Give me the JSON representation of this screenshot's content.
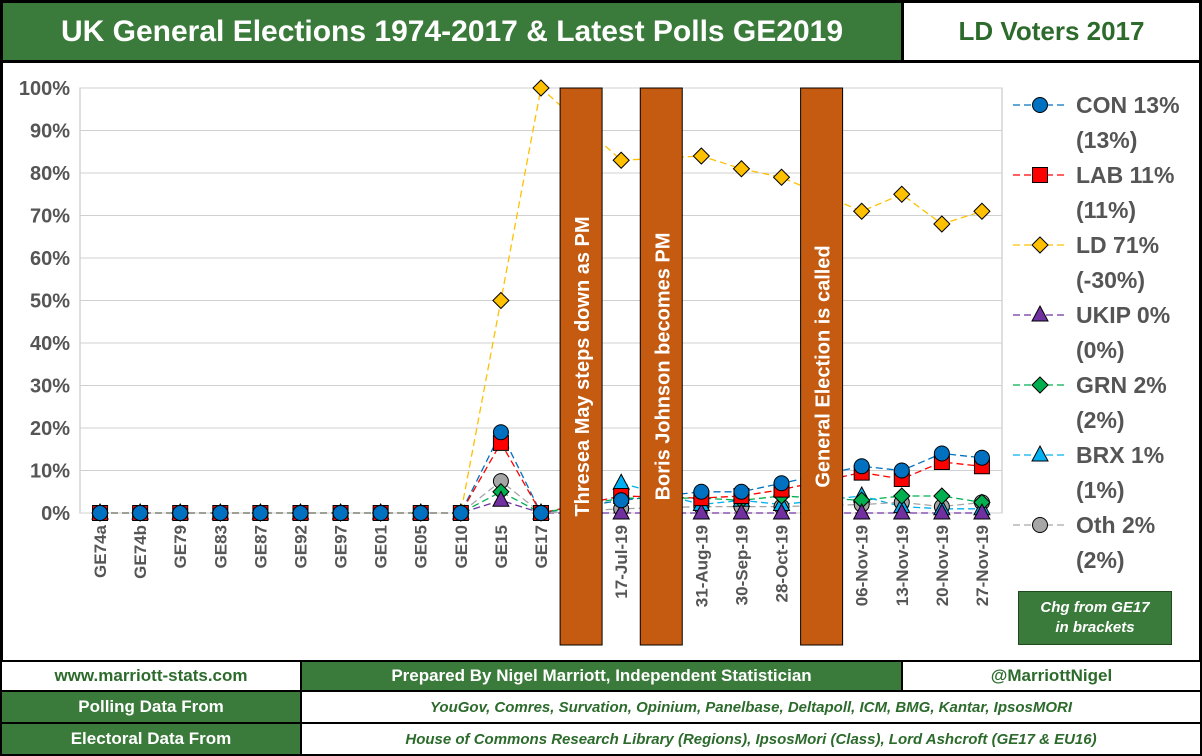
{
  "header": {
    "title": "UK General Elections 1974-2017 & Latest Polls GE2019",
    "subtitle": "LD Voters 2017"
  },
  "footer": {
    "website": "www.marriott-stats.com",
    "prepared_by": "Prepared By Nigel Marriott, Independent Statistician",
    "twitter": "@MarriottNigel",
    "polling_label": "Polling Data From",
    "polling_sources": "YouGov, Comres, Survation, Opinium, Panelbase, Deltapoll, ICM, BMG, Kantar, IpsosMORI",
    "electoral_label": "Electoral Data From",
    "electoral_sources": "House of Commons Research Library (Regions), IpsosMori (Class), Lord Ashcroft (GE17 & EU16)"
  },
  "chg_note": {
    "line1": "Chg from GE17",
    "line2": "in brackets"
  },
  "chart_data": {
    "type": "line",
    "ylim": [
      0,
      100
    ],
    "yticks": [
      "0%",
      "10%",
      "20%",
      "30%",
      "40%",
      "50%",
      "60%",
      "70%",
      "80%",
      "90%",
      "100%"
    ],
    "categories": [
      "GE74a",
      "GE74b",
      "GE79",
      "GE83",
      "GE87",
      "GE92",
      "GE97",
      "GE01",
      "GE05",
      "GE10",
      "GE15",
      "GE17",
      "",
      "17-Jul-19",
      "",
      "31-Aug-19",
      "30-Sep-19",
      "28-Oct-19",
      "",
      "06-Nov-19",
      "13-Nov-19",
      "20-Nov-19",
      "27-Nov-19"
    ],
    "events": [
      {
        "slot": 12,
        "label": "Thresea May steps down as PM"
      },
      {
        "slot": 14,
        "label": "Boris Johnson becomes PM"
      },
      {
        "slot": 18,
        "label": "General Election is called"
      }
    ],
    "series": [
      {
        "name": "CON",
        "color": "#0070c0",
        "marker": "circle",
        "legend": "CON 13%",
        "change": "(13%)",
        "values": [
          0,
          0,
          0,
          0,
          0,
          0,
          0,
          0,
          0,
          0,
          19,
          0,
          null,
          3,
          null,
          5,
          5,
          7,
          null,
          11,
          10,
          14,
          13
        ]
      },
      {
        "name": "LAB",
        "color": "#ff0000",
        "marker": "square",
        "legend": "LAB 11%",
        "change": "(11%)",
        "values": [
          0,
          0,
          0,
          0,
          0,
          0,
          0,
          0,
          0,
          0,
          16.5,
          0,
          null,
          4,
          null,
          3.5,
          4,
          5.5,
          null,
          9.5,
          8,
          12,
          11
        ]
      },
      {
        "name": "LD",
        "color": "#ffc000",
        "marker": "diamond",
        "legend": "LD 71%",
        "change": "(-30%)",
        "values": [
          0,
          0,
          0,
          0,
          0,
          0,
          0,
          0,
          0,
          0,
          50,
          100,
          null,
          83,
          null,
          84,
          81,
          79,
          null,
          71,
          75,
          68,
          71
        ]
      },
      {
        "name": "UKIP",
        "color": "#7030a0",
        "marker": "triangle",
        "legend": "UKIP 0%",
        "change": "(0%)",
        "values": [
          0,
          0,
          0,
          0,
          0,
          0,
          0,
          0,
          0,
          0,
          3,
          0,
          null,
          0,
          null,
          0,
          0,
          0,
          null,
          0,
          0,
          0,
          0
        ]
      },
      {
        "name": "GRN",
        "color": "#00b050",
        "marker": "diamond",
        "legend": "GRN 2%",
        "change": "(2%)",
        "values": [
          0,
          0,
          0,
          0,
          0,
          0,
          0,
          0,
          0,
          0,
          5,
          0,
          null,
          3.5,
          null,
          3.5,
          3,
          4,
          null,
          3,
          4,
          4,
          2.5
        ]
      },
      {
        "name": "BRX",
        "color": "#00b0f0",
        "marker": "triangle",
        "legend": "BRX 1%",
        "change": "(1%)",
        "values": [
          null,
          null,
          null,
          null,
          null,
          null,
          null,
          null,
          null,
          null,
          null,
          null,
          null,
          7,
          null,
          2,
          3,
          2,
          null,
          4,
          1.5,
          1,
          1
        ]
      },
      {
        "name": "Oth",
        "color": "#a6a6a6",
        "marker": "circle",
        "legend": "Oth 2%",
        "change": "(2%)",
        "values": [
          0,
          0,
          0,
          0,
          0,
          0,
          0,
          0,
          0,
          0,
          7.5,
          0,
          null,
          1,
          null,
          1.5,
          1.5,
          1.5,
          null,
          2,
          2.5,
          1.5,
          2.5
        ]
      }
    ]
  }
}
